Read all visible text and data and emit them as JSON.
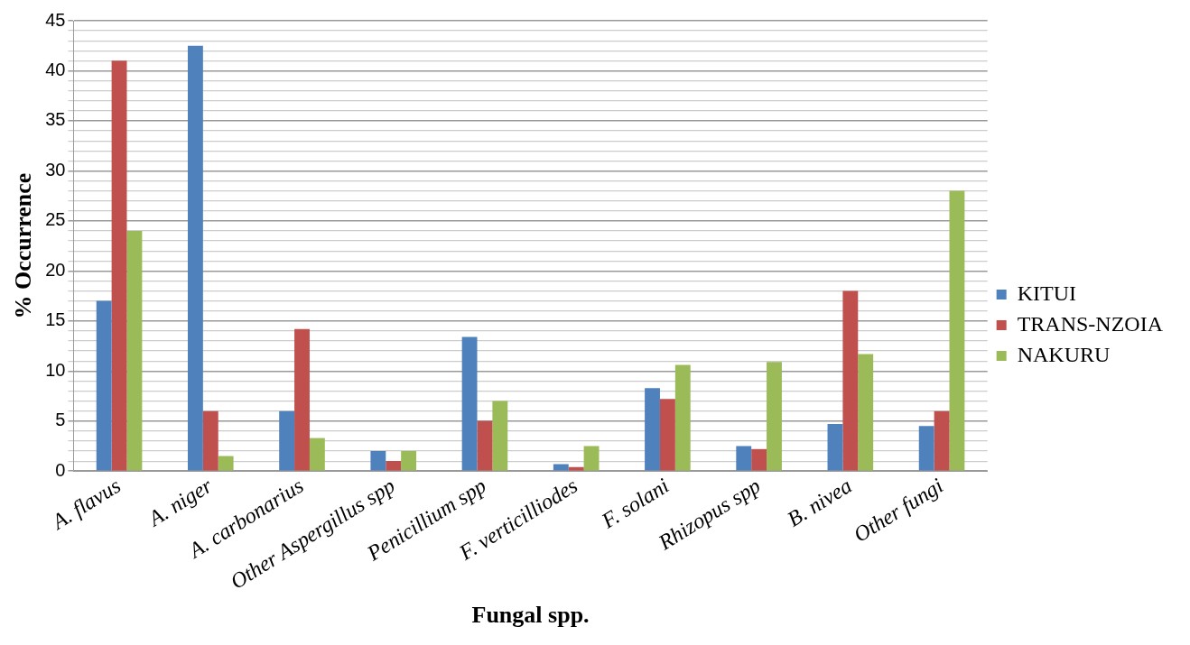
{
  "chart_data": {
    "type": "bar",
    "xlabel": "Fungal spp.",
    "ylabel": "% Occurrence",
    "categories": [
      "A. flavus",
      "A. niger",
      "A. carbonarius",
      "Other Aspergillus spp",
      "Penicillium spp",
      "F. verticilliodes",
      "F. solani",
      "Rhizopus spp",
      "B. nivea",
      "Other fungi"
    ],
    "series": [
      {
        "name": "KITUI",
        "color": "#4f81bd",
        "values": [
          17,
          42.5,
          6,
          2,
          13.4,
          0.7,
          8.3,
          2.5,
          4.7,
          4.5
        ]
      },
      {
        "name": "TRANS-NZOIA",
        "color": "#c0504d",
        "values": [
          41,
          6,
          14.2,
          1,
          5,
          0.4,
          7.2,
          2.2,
          18,
          6
        ]
      },
      {
        "name": "NAKURU",
        "color": "#9bbb59",
        "values": [
          24,
          1.5,
          3.3,
          2,
          7,
          2.5,
          10.6,
          10.9,
          11.7,
          28
        ]
      }
    ],
    "ylim": [
      0,
      45
    ],
    "yticks": [
      0,
      {
        "value": 1,
        "label": null
      },
      {
        "value": 2,
        "label": null
      },
      {
        "value": 3,
        "label": null
      },
      {
        "value": 4,
        "label": null
      },
      5,
      {
        "value": 6,
        "label": null
      },
      {
        "value": 7,
        "label": null
      },
      {
        "value": 8,
        "label": null
      },
      {
        "value": 9,
        "label": null
      },
      10,
      {
        "value": 11,
        "label": null
      },
      {
        "value": 12,
        "label": null
      },
      {
        "value": 13,
        "label": null
      },
      {
        "value": 14,
        "label": null
      },
      15,
      {
        "value": 16,
        "label": null
      },
      {
        "value": 17,
        "label": null
      },
      {
        "value": 18,
        "label": null
      },
      {
        "value": 19,
        "label": null
      },
      20,
      {
        "value": 21,
        "label": null
      },
      {
        "value": 22,
        "label": null
      },
      {
        "value": 23,
        "label": null
      },
      {
        "value": 24,
        "label": null
      },
      25,
      {
        "value": 26,
        "label": null
      },
      {
        "value": 27,
        "label": null
      },
      {
        "value": 28,
        "label": null
      },
      {
        "value": 29,
        "label": null
      },
      30,
      {
        "value": 31,
        "label": null
      },
      {
        "value": 32,
        "label": null
      },
      {
        "value": 33,
        "label": null
      },
      {
        "value": 34,
        "label": null
      },
      35,
      {
        "value": 36,
        "label": null
      },
      {
        "value": 37,
        "label": null
      },
      {
        "value": 38,
        "label": null
      },
      {
        "value": 39,
        "label": null
      },
      40,
      {
        "value": 41,
        "label": null
      },
      {
        "value": 42,
        "label": null
      },
      {
        "value": 43,
        "label": null
      },
      {
        "value": 44,
        "label": null
      },
      45
    ],
    "grid": "y",
    "legend": "right"
  }
}
